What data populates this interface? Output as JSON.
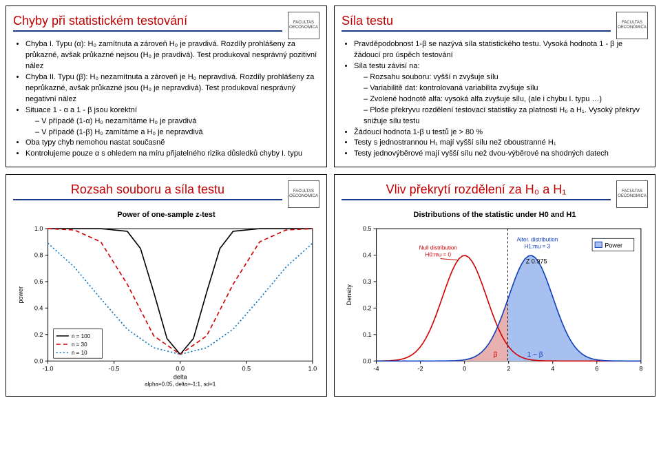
{
  "cards": {
    "a": {
      "title": "Chyby při statistickém testování",
      "bullets": [
        "Chyba I. Typu (α): H₀ zamítnuta a zároveň H₀ je pravdivá. Rozdíly prohlášeny za průkazné, avšak průkazné nejsou (H₀ je pravdivá). Test produkoval nesprávný pozitivní nález",
        "Chyba II. Typu (β): H₀ nezamítnuta a zároveň je H₀ nepravdivá. Rozdíly prohlášeny za neprůkazné, avšak průkazné jsou (H₀ je nepravdivá). Test produkoval nesprávný negativní nález",
        "Situace 1 - α a 1 - β jsou korektní",
        "Oba typy chyb nemohou nastat současně",
        "Kontrolujeme pouze α s ohledem na míru přijatelného rizika důsledků chyby I. typu"
      ],
      "sub_a": [
        "V případě (1-α) H₀ nezamítáme H₀ je pravdivá",
        "V případě (1-β) H₀ zamítáme a H₀ je nepravdivá"
      ]
    },
    "b": {
      "title": "Síla testu",
      "bullets": [
        "Pravděpodobnost 1-β se nazývá síla statistického testu. Vysoká hodnota 1 - β je žádoucí pro úspěch testování",
        "Síla testu závisí na:",
        "Žádoucí hodnota 1-β u testů je  > 80 %",
        "Testy s jednostrannou H₁ mají vyšší sílu než oboustranné H₁",
        "Testy jednovýběrové mají vyšší sílu než dvou-výběrové na shodných datech"
      ],
      "sub_b": [
        "Rozsahu souboru: vyšší n zvyšuje sílu",
        "Variabilitě dat: kontrolovaná variabilita zvyšuje sílu",
        "Zvolené hodnotě alfa: vysoká alfa zvyšuje sílu, (ale i chybu I. typu …)",
        "Ploše překryvu rozdělení testovací statistiky za platnosti H₀ a H₁. Vysoký překryv snižuje sílu testu"
      ]
    },
    "c": {
      "title": "Rozsah souboru a síla testu",
      "chart_title": "Power of one-sample z-test",
      "chart": {
        "xlabel": "delta",
        "ylabel": "power",
        "sub": "alpha=0.05, delta=-1:1, sd=1",
        "xlim": [
          -1.0,
          1.0
        ],
        "xtick": [
          -1.0,
          -0.5,
          0.0,
          0.5,
          1.0
        ],
        "ylim": [
          0.0,
          1.0
        ],
        "ytick": [
          0.0,
          0.2,
          0.4,
          0.6,
          0.8,
          1.0
        ],
        "curves": [
          {
            "label": "n = 100",
            "color": "#000000",
            "dash": "",
            "pts": [
              [
                -1,
                1
              ],
              [
                -0.6,
                1
              ],
              [
                -0.4,
                0.98
              ],
              [
                -0.3,
                0.85
              ],
              [
                -0.2,
                0.52
              ],
              [
                -0.1,
                0.17
              ],
              [
                0,
                0.05
              ],
              [
                0.1,
                0.17
              ],
              [
                0.2,
                0.52
              ],
              [
                0.3,
                0.85
              ],
              [
                0.4,
                0.98
              ],
              [
                0.6,
                1
              ],
              [
                1,
                1
              ]
            ]
          },
          {
            "label": "n = 30",
            "color": "#d00000",
            "dash": "6,4",
            "pts": [
              [
                -1,
                1
              ],
              [
                -0.8,
                0.99
              ],
              [
                -0.6,
                0.9
              ],
              [
                -0.4,
                0.58
              ],
              [
                -0.2,
                0.19
              ],
              [
                0,
                0.05
              ],
              [
                0.2,
                0.19
              ],
              [
                0.4,
                0.58
              ],
              [
                0.6,
                0.9
              ],
              [
                0.8,
                0.99
              ],
              [
                1,
                1
              ]
            ]
          },
          {
            "label": "n = 10",
            "color": "#0070c0",
            "dash": "2,3",
            "pts": [
              [
                -1,
                0.89
              ],
              [
                -0.8,
                0.71
              ],
              [
                -0.6,
                0.47
              ],
              [
                -0.4,
                0.24
              ],
              [
                -0.2,
                0.1
              ],
              [
                0,
                0.05
              ],
              [
                0.2,
                0.1
              ],
              [
                0.4,
                0.24
              ],
              [
                0.6,
                0.47
              ],
              [
                0.8,
                0.71
              ],
              [
                1,
                0.89
              ]
            ]
          }
        ],
        "legend_pos": "bottom-left",
        "background": "#ffffff",
        "grid": "#e6e6e6",
        "text": "#000000"
      }
    },
    "d": {
      "title": "Vliv překrytí rozdělení za H₀ a H₁",
      "chart_title": "Distributions of the statistic under H0 and H1",
      "chart": {
        "xlabel": "",
        "ylabel": "Density",
        "xlim": [
          -4,
          8
        ],
        "xtick": [
          -4,
          -2,
          0,
          2,
          4,
          6,
          8
        ],
        "ylim": [
          0.0,
          0.5
        ],
        "ytick": [
          0.0,
          0.1,
          0.2,
          0.3,
          0.4,
          0.5
        ],
        "h0": {
          "label": "Null distribution\nH0:mu = 0",
          "mu": 0,
          "sd": 1,
          "color": "#d00000",
          "fill": "#e9b0b0"
        },
        "h1": {
          "label": "Alter. distribution\nH1:mu = 3",
          "mu": 3,
          "sd": 1,
          "color": "#1040c0",
          "fill": "#a8c0f0"
        },
        "z_crit": 1.96,
        "z_label": "Z 0.975",
        "beta_label": "β",
        "power_label": "1 − β",
        "legend": "Power",
        "background": "#ffffff",
        "grid": "#e6e6e6",
        "text": "#000000"
      }
    }
  },
  "logo_text": "FACULTAS\nOECONOMICA"
}
